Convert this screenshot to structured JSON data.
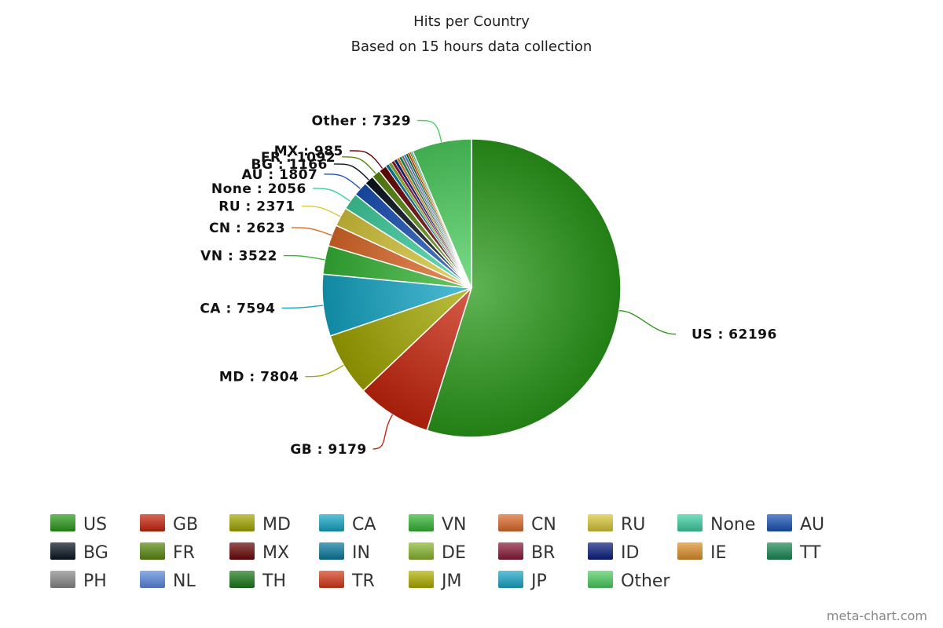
{
  "chart_data": {
    "type": "pie",
    "title": "Hits per Country",
    "subtitle": "Based on 15 hours data collection",
    "slices": [
      {
        "name": "US",
        "value": 62196,
        "color": "#2a9a1a",
        "label": "US : 62196"
      },
      {
        "name": "GB",
        "value": 9179,
        "color": "#c8250c",
        "label": "GB : 9179"
      },
      {
        "name": "MD",
        "value": 7804,
        "color": "#a4a800",
        "label": "MD : 7804"
      },
      {
        "name": "CA",
        "value": 7594,
        "color": "#14a6c6",
        "label": "CA : 7594"
      },
      {
        "name": "VN",
        "value": 3522,
        "color": "#36b636",
        "label": "VN : 3522"
      },
      {
        "name": "CN",
        "value": 2623,
        "color": "#de6a2a",
        "label": "CN : 2623"
      },
      {
        "name": "RU",
        "value": 2371,
        "color": "#d8c83a",
        "label": "RU : 2371"
      },
      {
        "name": "None",
        "value": 2056,
        "color": "#3ed0a0",
        "label": "None : 2056"
      },
      {
        "name": "AU",
        "value": 1807,
        "color": "#1a52b8",
        "label": "AU : 1807"
      },
      {
        "name": "BG",
        "value": 1166,
        "color": "#0a1420",
        "label": "BG : 1166"
      },
      {
        "name": "FR",
        "value": 1092,
        "color": "#5a8a10",
        "label": "FR : 1092"
      },
      {
        "name": "MX",
        "value": 985,
        "color": "#6a0606",
        "label": "MX : 985"
      },
      {
        "name": "IN",
        "value": 420,
        "color": "#0a7aa0",
        "label": ""
      },
      {
        "name": "DE",
        "value": 400,
        "color": "#8ab830",
        "label": ""
      },
      {
        "name": "BR",
        "value": 380,
        "color": "#8a1a3a",
        "label": ""
      },
      {
        "name": "ID",
        "value": 360,
        "color": "#0a1e80",
        "label": ""
      },
      {
        "name": "IE",
        "value": 340,
        "color": "#e0902a",
        "label": ""
      },
      {
        "name": "TT",
        "value": 320,
        "color": "#1a8a56",
        "label": ""
      },
      {
        "name": "PH",
        "value": 300,
        "color": "#8a8a8a",
        "label": ""
      },
      {
        "name": "NL",
        "value": 280,
        "color": "#5a8ae0",
        "label": ""
      },
      {
        "name": "TH",
        "value": 260,
        "color": "#1a7a1a",
        "label": ""
      },
      {
        "name": "TR",
        "value": 240,
        "color": "#d83a1a",
        "label": ""
      },
      {
        "name": "JM",
        "value": 220,
        "color": "#b0b000",
        "label": ""
      },
      {
        "name": "JP",
        "value": 200,
        "color": "#1aa8c8",
        "label": ""
      },
      {
        "name": "Other",
        "value": 7329,
        "color": "#4ed060",
        "label": "Other : 7329"
      }
    ],
    "legend_placement": "bottom"
  },
  "credit": "meta-chart.com"
}
